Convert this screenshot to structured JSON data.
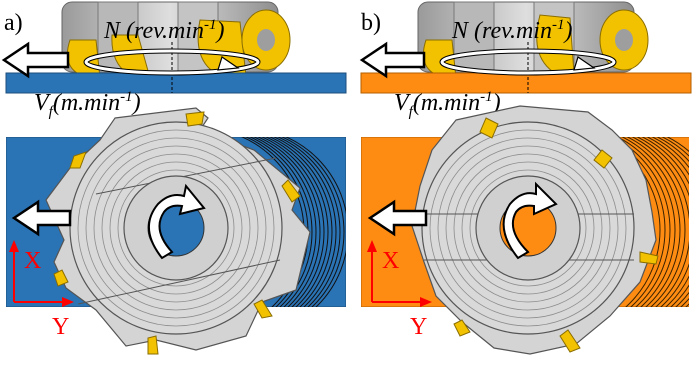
{
  "panels": [
    {
      "label": "a)",
      "workpiece_color": "#2a73b4",
      "spindle_speed_label": "N (rev.min",
      "spindle_speed_exp": "-1",
      "spindle_speed_close": ")",
      "feed_rate_label": "V",
      "feed_rate_sub": "f",
      "feed_rate_unit": "(m.min",
      "feed_rate_exp": "-1",
      "feed_rate_close": ")",
      "axis_x": "X",
      "axis_y": "Y"
    },
    {
      "label": "b)",
      "workpiece_color": "#ff8c12",
      "spindle_speed_label": "N (rev.min",
      "spindle_speed_exp": "-1",
      "spindle_speed_close": ")",
      "feed_rate_label": "V",
      "feed_rate_sub": "f",
      "feed_rate_unit": "(m.min",
      "feed_rate_exp": "-1",
      "feed_rate_close": ")",
      "axis_x": "X",
      "axis_y": "Y"
    }
  ],
  "colors": {
    "insert": "#f2c200",
    "tool_body": "#d9d9d9",
    "tool_edge": "#555555",
    "axis": "#ff0000",
    "arrow_fill": "#ffffff",
    "arrow_edge": "#000000"
  }
}
